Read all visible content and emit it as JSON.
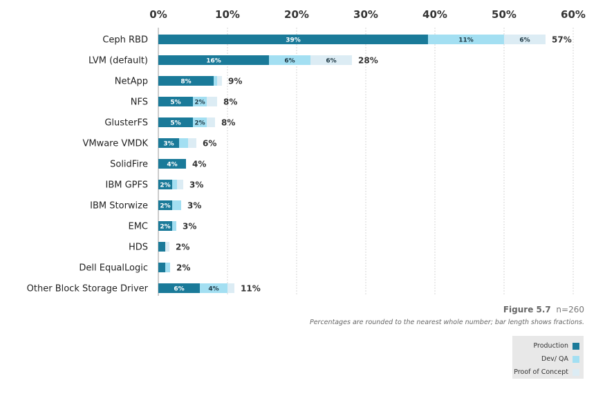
{
  "chart_data": {
    "type": "bar",
    "orientation": "horizontal",
    "stacked": true,
    "categories": [
      "Ceph RBD",
      "LVM (default)",
      "NetApp",
      "NFS",
      "GlusterFS",
      "VMware VMDK",
      "SolidFire",
      "IBM GPFS",
      "IBM Storwize",
      "EMC",
      "HDS",
      "Dell EqualLogic",
      "Other Block Storage Driver"
    ],
    "series": [
      {
        "name": "Production",
        "color": "#1a7a99",
        "values": [
          39,
          16,
          8,
          5,
          5,
          3,
          4,
          2,
          2,
          2,
          1,
          1,
          6
        ],
        "labels": [
          "39%",
          "16%",
          "8%",
          "5%",
          "5%",
          "3%",
          "4%",
          "2%",
          "2%",
          "2%",
          "",
          "",
          "6%"
        ]
      },
      {
        "name": "Dev/ QA",
        "color": "#a3dff2",
        "values": [
          11,
          6,
          0.5,
          2,
          2,
          1.3,
          0,
          0.7,
          1.3,
          0.6,
          0,
          0.7,
          4
        ],
        "labels": [
          "11%",
          "6%",
          "",
          "2%",
          "2%",
          "",
          "",
          "",
          "",
          "",
          "",
          "",
          "4%"
        ]
      },
      {
        "name": "Proof of Concept",
        "color": "#dcecf4",
        "values": [
          6,
          6,
          0.7,
          1.5,
          1.2,
          1.2,
          0,
          0.9,
          0,
          0,
          0.6,
          0,
          1
        ],
        "labels": [
          "6%",
          "6%",
          "",
          "",
          "",
          "",
          "",
          "",
          "",
          "",
          "",
          "",
          ""
        ]
      }
    ],
    "totals": [
      "57%",
      "28%",
      "9%",
      "8%",
      "8%",
      "6%",
      "4%",
      "3%",
      "3%",
      "3%",
      "2%",
      "2%",
      "11%"
    ],
    "xaxis": {
      "ticks": [
        "0%",
        "10%",
        "20%",
        "30%",
        "40%",
        "50%",
        "60%"
      ],
      "range": [
        0,
        60
      ],
      "position": "top"
    },
    "grid": true,
    "legend_position": "bottom-right",
    "figure_label": "Figure 5.7",
    "sample_size": "n=260",
    "note": "Percentages are rounded to the nearest whole number; bar length shows fractions."
  }
}
